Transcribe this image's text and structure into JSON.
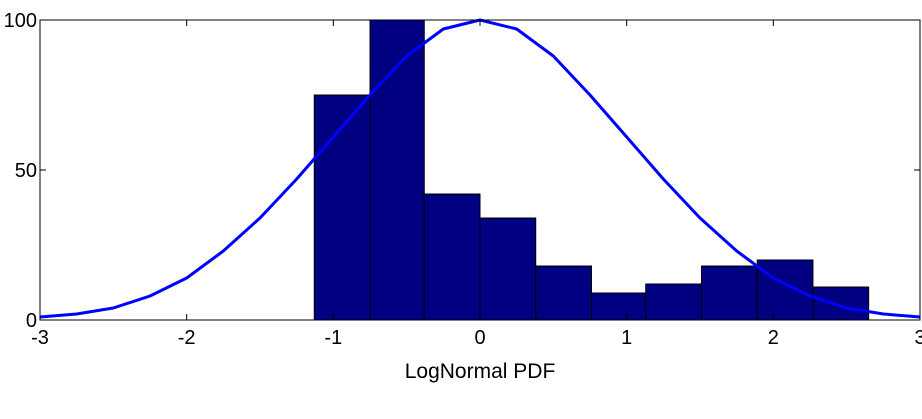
{
  "chart_data": {
    "type": "bar",
    "title": "",
    "xlabel": "LogNormal PDF",
    "ylabel": "",
    "xlim": [
      -3,
      3
    ],
    "ylim": [
      0,
      100
    ],
    "xticks": [
      "-3",
      "-2",
      "-1",
      "0",
      "1",
      "2",
      "3"
    ],
    "yticks": [
      "0",
      "50",
      "100"
    ],
    "grid": false,
    "legend": "none",
    "bar_color": "#000080",
    "line_color": "#0000ff",
    "histogram": {
      "bins": [
        {
          "x0": -1.13,
          "x1": -0.75,
          "value": 75
        },
        {
          "x0": -0.75,
          "x1": -0.38,
          "value": 100
        },
        {
          "x0": -0.38,
          "x1": 0.0,
          "value": 42
        },
        {
          "x0": 0.0,
          "x1": 0.38,
          "value": 34
        },
        {
          "x0": 0.38,
          "x1": 0.76,
          "value": 18
        },
        {
          "x0": 0.76,
          "x1": 1.13,
          "value": 9
        },
        {
          "x0": 1.13,
          "x1": 1.51,
          "value": 12
        },
        {
          "x0": 1.51,
          "x1": 1.89,
          "value": 18
        },
        {
          "x0": 1.89,
          "x1": 2.27,
          "value": 20
        },
        {
          "x0": 2.27,
          "x1": 2.65,
          "value": 11
        }
      ]
    },
    "curve": {
      "x": [
        -3.0,
        -2.75,
        -2.5,
        -2.25,
        -2.0,
        -1.75,
        -1.5,
        -1.25,
        -1.0,
        -0.75,
        -0.5,
        -0.25,
        0.0,
        0.25,
        0.5,
        0.75,
        1.0,
        1.25,
        1.5,
        1.75,
        2.0,
        2.25,
        2.5,
        2.75,
        3.0
      ],
      "y": [
        1,
        2,
        4,
        8,
        14,
        23,
        34,
        47,
        61,
        75,
        88,
        97,
        100,
        97,
        88,
        75,
        61,
        47,
        34,
        23,
        14,
        8,
        4,
        2,
        1
      ]
    }
  }
}
